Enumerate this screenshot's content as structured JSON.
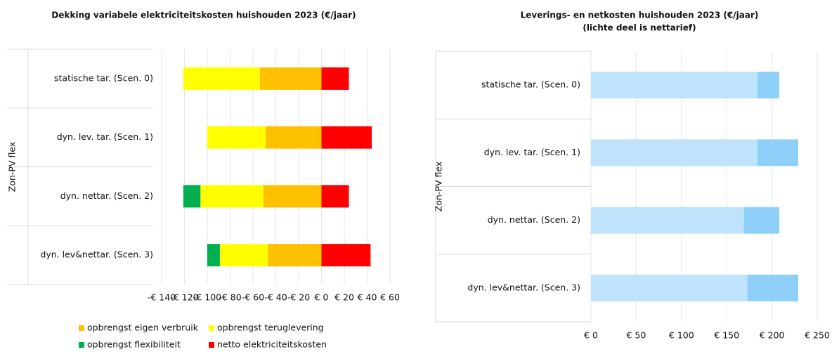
{
  "chart_data": [
    {
      "type": "stacked-barh",
      "title": "Dekking variabele elektriciteitskosten huishouden 2023 (€/jaar)",
      "y_label": "Zon-PV flex",
      "categories": [
        "statische tar. (Scen. 0)",
        "dyn. lev. tar. (Scen. 1)",
        "dyn. nettar. (Scen. 2)",
        "dyn. lev&nettar. (Scen. 3)"
      ],
      "series": [
        {
          "name": "opbrengst eigen verbruik",
          "color": "#ffc000",
          "values": [
            -54,
            -49,
            -51,
            -47
          ]
        },
        {
          "name": "opbrengst teruglevering",
          "color": "#ffff00",
          "values": [
            -67,
            -51,
            -55,
            -42
          ]
        },
        {
          "name": "opbrengst flexibiliteit",
          "color": "#00b050",
          "values": [
            0,
            0,
            -15,
            -11
          ]
        },
        {
          "name": "netto elektriciteitskosten",
          "color": "#ff0000",
          "values": [
            24,
            44,
            24,
            43
          ]
        }
      ],
      "xlim": [
        -140,
        60
      ],
      "xticks": [
        {
          "value": -140,
          "label": "-€ 140"
        },
        {
          "value": -120,
          "label": "-€ 120"
        },
        {
          "value": -100,
          "label": "-€ 100"
        },
        {
          "value": -80,
          "label": "-€ 80"
        },
        {
          "value": -60,
          "label": "-€ 60"
        },
        {
          "value": -40,
          "label": "-€ 40"
        },
        {
          "value": -20,
          "label": "-€ 20"
        },
        {
          "value": 0,
          "label": "€ 0"
        },
        {
          "value": 20,
          "label": "€ 20"
        },
        {
          "value": 40,
          "label": "€ 40"
        },
        {
          "value": 60,
          "label": "€ 60"
        }
      ],
      "legend": "bottom"
    },
    {
      "type": "stacked-barh",
      "title": "Leverings- en netkosten huishouden 2023 (€/jaar)",
      "subtitle": "(lichte deel is nettarief)",
      "y_label": "Zon-PV flex",
      "categories": [
        "statische tar. (Scen. 0)",
        "dyn. lev. tar. (Scen. 1)",
        "dyn. nettar. (Scen. 2)",
        "dyn. lev&nettar. (Scen. 3)"
      ],
      "series": [
        {
          "color": "#bfe3fb",
          "values": [
            184,
            184,
            169,
            173
          ]
        },
        {
          "color": "#8ed0fa",
          "values": [
            24,
            45,
            39,
            56
          ]
        }
      ],
      "xlim": [
        0,
        250
      ],
      "xticks": [
        {
          "value": 0,
          "label": "€ 0"
        },
        {
          "value": 50,
          "label": "€ 50"
        },
        {
          "value": 100,
          "label": "€ 100"
        },
        {
          "value": 150,
          "label": "€ 150"
        },
        {
          "value": 200,
          "label": "€ 200"
        },
        {
          "value": 250,
          "label": "€ 250"
        }
      ],
      "grid": true
    }
  ]
}
